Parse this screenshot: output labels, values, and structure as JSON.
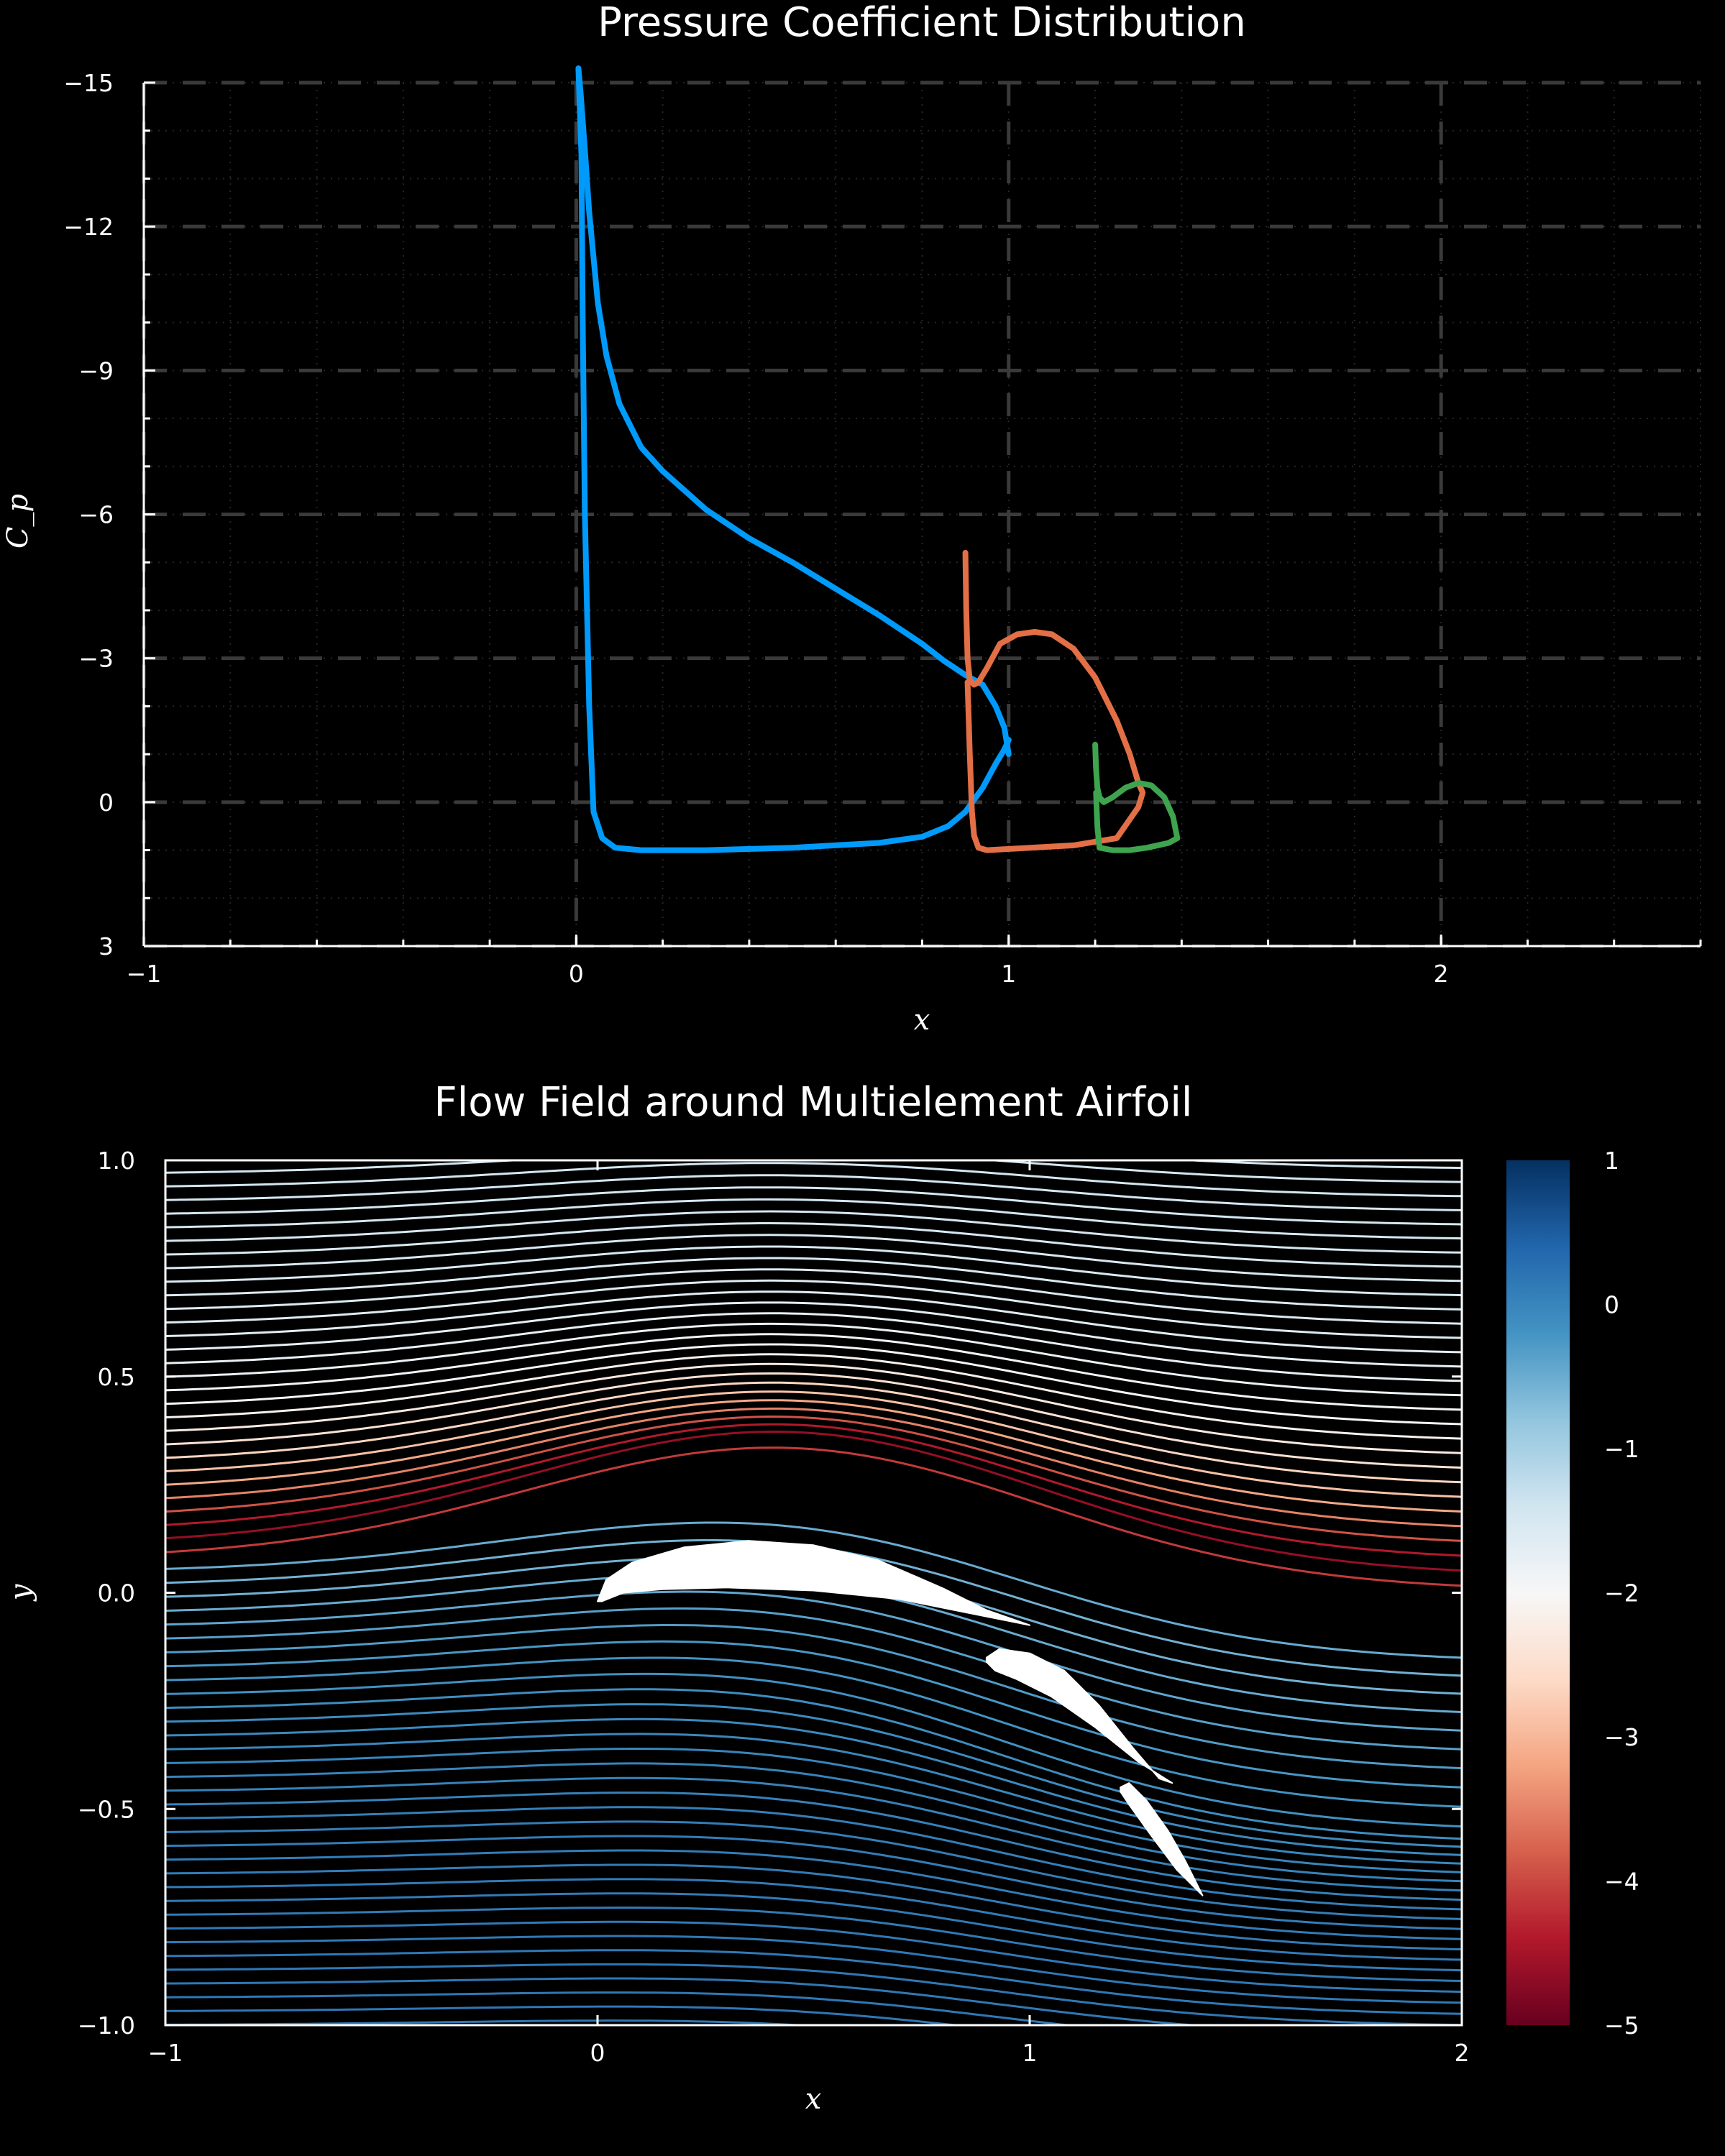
{
  "chart_data": [
    {
      "type": "line",
      "title": "Pressure Coefficient Distribution",
      "xlabel": "x",
      "ylabel": "C_p",
      "xlim": [
        -1,
        2.6
      ],
      "ylim": [
        3,
        -15
      ],
      "y_inverted": true,
      "grid": true,
      "grid_style": "dashed",
      "xticks": [
        -1,
        0,
        1,
        2
      ],
      "xtick_labels": [
        "−1",
        "0",
        "1",
        "2"
      ],
      "yticks": [
        -15,
        -12,
        -9,
        -6,
        -3,
        0,
        3
      ],
      "ytick_labels": [
        "−15",
        "−12",
        "−9",
        "−6",
        "−3",
        "0",
        "3"
      ],
      "series": [
        {
          "color": "#009AFA",
          "x": [
            1.0,
            0.99,
            0.97,
            0.94,
            0.9,
            0.85,
            0.8,
            0.7,
            0.6,
            0.5,
            0.4,
            0.3,
            0.2,
            0.15,
            0.1,
            0.07,
            0.05,
            0.03,
            0.02,
            0.01,
            0.005,
            0.012,
            0.015,
            0.02,
            0.03,
            0.04,
            0.06,
            0.09,
            0.15,
            0.3,
            0.5,
            0.7,
            0.8,
            0.86,
            0.9,
            0.94,
            0.97,
            0.99,
            1.0
          ],
          "y": [
            -1.0,
            -1.55,
            -2.0,
            -2.45,
            -2.65,
            -2.95,
            -3.3,
            -3.9,
            -4.45,
            -5.0,
            -5.5,
            -6.1,
            -6.9,
            -7.4,
            -8.3,
            -9.3,
            -10.4,
            -12.3,
            -13.6,
            -14.8,
            -15.3,
            -13.5,
            -10.0,
            -6.0,
            -2.0,
            0.2,
            0.75,
            0.95,
            1.0,
            1.0,
            0.95,
            0.85,
            0.72,
            0.5,
            0.2,
            -0.3,
            -0.8,
            -1.1,
            -1.3
          ]
        },
        {
          "color": "#E26F46",
          "x": [
            0.9,
            0.902,
            0.905,
            0.91,
            0.92,
            0.93,
            0.95,
            0.98,
            1.02,
            1.06,
            1.1,
            1.15,
            1.2,
            1.25,
            1.28,
            1.3,
            1.31,
            1.3,
            1.25,
            1.15,
            1.05,
            0.95,
            0.93,
            0.92,
            0.915,
            0.91,
            0.905
          ],
          "y": [
            -5.2,
            -4.0,
            -3.0,
            -2.55,
            -2.45,
            -2.5,
            -2.8,
            -3.3,
            -3.5,
            -3.55,
            -3.5,
            -3.2,
            -2.6,
            -1.7,
            -1.0,
            -0.4,
            -0.2,
            0.1,
            0.75,
            0.9,
            0.95,
            1.0,
            0.95,
            0.7,
            0.2,
            -1.0,
            -2.5
          ]
        },
        {
          "color": "#3EA44E",
          "x": [
            1.2,
            1.202,
            1.205,
            1.21,
            1.22,
            1.24,
            1.27,
            1.3,
            1.33,
            1.36,
            1.38,
            1.39,
            1.37,
            1.32,
            1.28,
            1.24,
            1.21,
            1.205,
            1.202
          ],
          "y": [
            -1.2,
            -0.7,
            -0.3,
            -0.1,
            0.0,
            -0.1,
            -0.3,
            -0.4,
            -0.35,
            -0.1,
            0.3,
            0.75,
            0.85,
            0.95,
            1.0,
            1.0,
            0.95,
            0.5,
            -0.2
          ]
        }
      ]
    },
    {
      "type": "streamline",
      "title": "Flow Field around Multielement Airfoil",
      "xlabel": "x",
      "ylabel": "y",
      "xlim": [
        -1,
        2
      ],
      "ylim": [
        -1,
        1
      ],
      "xticks": [
        -1,
        0,
        1,
        2
      ],
      "xtick_labels": [
        "−1",
        "0",
        "1",
        "2"
      ],
      "yticks": [
        1.0,
        0.5,
        0.0,
        -0.5,
        -1.0
      ],
      "ytick_labels": [
        "1.0",
        "0.5",
        "0.0",
        "−0.5",
        "−1.0"
      ],
      "colorbar": {
        "colormap": "RdBu",
        "range": [
          -5,
          1
        ],
        "ticks": [
          1,
          0,
          -1,
          -2,
          -3,
          -4,
          -5
        ],
        "tick_labels": [
          "1",
          "0",
          "−1",
          "−2",
          "−3",
          "−4",
          "−5"
        ],
        "colors": [
          "#67001F",
          "#B2182B",
          "#D6604D",
          "#F4A582",
          "#FDDBC7",
          "#F7F7F7",
          "#D1E5F0",
          "#92C5DE",
          "#4393C3",
          "#2166AC",
          "#053061"
        ]
      },
      "airfoil_color": "#ffffff",
      "elements": [
        {
          "name": "main",
          "upper": [
            [
              0.0,
              -0.02
            ],
            [
              0.02,
              0.03
            ],
            [
              0.08,
              0.07
            ],
            [
              0.2,
              0.105
            ],
            [
              0.35,
              0.12
            ],
            [
              0.5,
              0.11
            ],
            [
              0.65,
              0.075
            ],
            [
              0.8,
              0.01
            ],
            [
              0.9,
              -0.04
            ],
            [
              1.0,
              -0.075
            ]
          ],
          "lower": [
            [
              1.0,
              -0.075
            ],
            [
              0.85,
              -0.045
            ],
            [
              0.7,
              -0.015
            ],
            [
              0.5,
              0.005
            ],
            [
              0.3,
              0.012
            ],
            [
              0.15,
              0.008
            ],
            [
              0.06,
              0.0
            ],
            [
              0.01,
              -0.02
            ]
          ]
        },
        {
          "name": "flap1",
          "upper": [
            [
              0.9,
              -0.15
            ],
            [
              0.93,
              -0.13
            ],
            [
              1.0,
              -0.14
            ],
            [
              1.08,
              -0.18
            ],
            [
              1.16,
              -0.26
            ],
            [
              1.24,
              -0.36
            ],
            [
              1.3,
              -0.43
            ],
            [
              1.33,
              -0.44
            ]
          ],
          "lower": [
            [
              1.33,
              -0.44
            ],
            [
              1.25,
              -0.39
            ],
            [
              1.15,
              -0.31
            ],
            [
              1.05,
              -0.24
            ],
            [
              0.97,
              -0.2
            ],
            [
              0.92,
              -0.18
            ],
            [
              0.9,
              -0.16
            ]
          ]
        },
        {
          "name": "flap2",
          "upper": [
            [
              1.21,
              -0.45
            ],
            [
              1.23,
              -0.44
            ],
            [
              1.27,
              -0.48
            ],
            [
              1.32,
              -0.55
            ],
            [
              1.36,
              -0.62
            ],
            [
              1.39,
              -0.68
            ],
            [
              1.4,
              -0.7
            ]
          ],
          "lower": [
            [
              1.4,
              -0.7
            ],
            [
              1.34,
              -0.64
            ],
            [
              1.28,
              -0.56
            ],
            [
              1.23,
              -0.49
            ],
            [
              1.21,
              -0.46
            ]
          ]
        }
      ],
      "stream_count": 64,
      "stream_y_range": [
        -1.0,
        1.0
      ]
    }
  ]
}
